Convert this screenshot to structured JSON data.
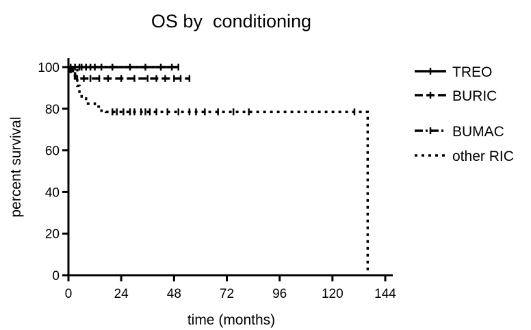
{
  "chart_data": {
    "type": "line",
    "title": "OS by  conditioning",
    "xlabel": "time (months)",
    "ylabel": "percent survival",
    "xlim": [
      0,
      144
    ],
    "ylim": [
      0,
      100
    ],
    "xticks": [
      0,
      24,
      48,
      72,
      96,
      120,
      144
    ],
    "yticks": [
      0,
      20,
      40,
      60,
      80,
      100
    ],
    "grid": false,
    "legend": "right",
    "series": [
      {
        "name": "TREO",
        "style": "solid",
        "x": [
          0,
          50
        ],
        "y": [
          100,
          100
        ],
        "censor_x": [
          1,
          3,
          5,
          8,
          12,
          20,
          28,
          35,
          42,
          47,
          50
        ]
      },
      {
        "name": "BURIC",
        "style": "dashed",
        "x": [
          0,
          1,
          1,
          3,
          3,
          55
        ],
        "y": [
          100,
          100,
          97,
          97,
          94.5,
          94.5
        ],
        "censor_x": [
          4,
          7,
          10,
          14,
          18,
          24,
          30,
          36,
          40,
          44,
          48,
          51,
          55
        ]
      },
      {
        "name": "BUMAC",
        "style": "dashdot",
        "x": [
          0,
          2,
          2,
          4,
          4,
          50
        ],
        "y": [
          100,
          100,
          98.5,
          98.5,
          100,
          100
        ],
        "censor_x": [
          6,
          10,
          15
        ]
      },
      {
        "name": "other RIC",
        "style": "dotted",
        "x": [
          0,
          2,
          2,
          4,
          4,
          5,
          5,
          6,
          6,
          8,
          8,
          12,
          12,
          15,
          15,
          17,
          17,
          136,
          136
        ],
        "y": [
          100,
          100,
          96,
          96,
          91,
          91,
          87,
          87,
          85,
          85,
          82.5,
          82.5,
          81,
          81,
          79,
          79,
          78.5,
          78.5,
          0
        ],
        "censor_x": [
          20,
          22,
          25,
          28,
          30,
          33,
          35,
          37,
          40,
          45,
          50,
          55,
          58,
          62,
          68,
          75,
          82,
          130
        ]
      }
    ]
  }
}
